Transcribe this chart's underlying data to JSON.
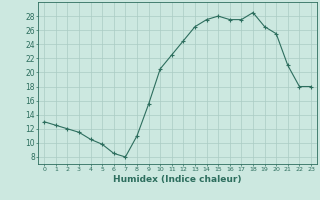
{
  "x": [
    0,
    1,
    2,
    3,
    4,
    5,
    6,
    7,
    8,
    9,
    10,
    11,
    12,
    13,
    14,
    15,
    16,
    17,
    18,
    19,
    20,
    21,
    22,
    23
  ],
  "y": [
    13,
    12.5,
    12,
    11.5,
    10.5,
    9.8,
    8.5,
    8,
    11,
    15.5,
    20.5,
    22.5,
    24.5,
    26.5,
    27.5,
    28,
    27.5,
    27.5,
    28.5,
    26.5,
    25.5,
    21,
    18,
    18
  ],
  "xlabel": "Humidex (Indice chaleur)",
  "ylabel": "",
  "xlim": [
    -0.5,
    23.5
  ],
  "ylim": [
    7,
    30
  ],
  "yticks": [
    8,
    10,
    12,
    14,
    16,
    18,
    20,
    22,
    24,
    26,
    28
  ],
  "xticks": [
    0,
    1,
    2,
    3,
    4,
    5,
    6,
    7,
    8,
    9,
    10,
    11,
    12,
    13,
    14,
    15,
    16,
    17,
    18,
    19,
    20,
    21,
    22,
    23
  ],
  "line_color": "#2d6e5e",
  "marker": "+",
  "bg_color": "#cce8e0",
  "grid_color": "#aaccc4",
  "border_color": "#2d6e5e",
  "tick_label_color": "#2d6e5e",
  "xlabel_color": "#2d6e5e"
}
